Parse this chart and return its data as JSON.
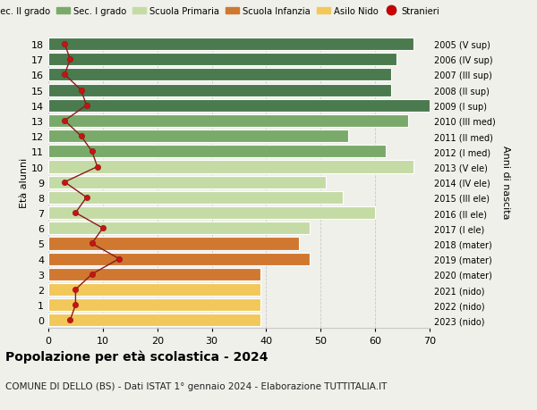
{
  "ages": [
    18,
    17,
    16,
    15,
    14,
    13,
    12,
    11,
    10,
    9,
    8,
    7,
    6,
    5,
    4,
    3,
    2,
    1,
    0
  ],
  "years": [
    "2005 (V sup)",
    "2006 (IV sup)",
    "2007 (III sup)",
    "2008 (II sup)",
    "2009 (I sup)",
    "2010 (III med)",
    "2011 (II med)",
    "2012 (I med)",
    "2013 (V ele)",
    "2014 (IV ele)",
    "2015 (III ele)",
    "2016 (II ele)",
    "2017 (I ele)",
    "2018 (mater)",
    "2019 (mater)",
    "2020 (mater)",
    "2021 (nido)",
    "2022 (nido)",
    "2023 (nido)"
  ],
  "bar_values": [
    67,
    64,
    63,
    63,
    70,
    66,
    55,
    62,
    67,
    51,
    54,
    60,
    48,
    46,
    48,
    39,
    39,
    39,
    39
  ],
  "bar_colors": [
    "#4a7a4e",
    "#4a7a4e",
    "#4a7a4e",
    "#4a7a4e",
    "#4a7a4e",
    "#7aaa6a",
    "#7aaa6a",
    "#7aaa6a",
    "#c5dba5",
    "#c5dba5",
    "#c5dba5",
    "#c5dba5",
    "#c5dba5",
    "#d07830",
    "#d07830",
    "#d07830",
    "#f2c85a",
    "#f2c85a",
    "#f2c85a"
  ],
  "stranieri_values": [
    3,
    4,
    3,
    6,
    7,
    3,
    6,
    8,
    9,
    3,
    7,
    5,
    10,
    8,
    13,
    8,
    5,
    5,
    4
  ],
  "legend_labels": [
    "Sec. II grado",
    "Sec. I grado",
    "Scuola Primaria",
    "Scuola Infanzia",
    "Asilo Nido",
    "Stranieri"
  ],
  "legend_colors": [
    "#4a7a4e",
    "#7aaa6a",
    "#c5dba5",
    "#d07830",
    "#f2c85a",
    "#cc0000"
  ],
  "title": "Popolazione per età scolastica - 2024",
  "subtitle": "COMUNE DI DELLO (BS) - Dati ISTAT 1° gennaio 2024 - Elaborazione TUTTITALIA.IT",
  "ylabel_left": "Età alunni",
  "ylabel_right": "Anni di nascita",
  "xlim_max": 70,
  "xticks": [
    0,
    10,
    20,
    30,
    40,
    50,
    60,
    70
  ],
  "bg_color": "#f0f0ea",
  "grid_color": "#c8c8c8",
  "bar_edge_color": "#ffffff",
  "line_color": "#8b1a1a",
  "dot_color": "#cc1111"
}
